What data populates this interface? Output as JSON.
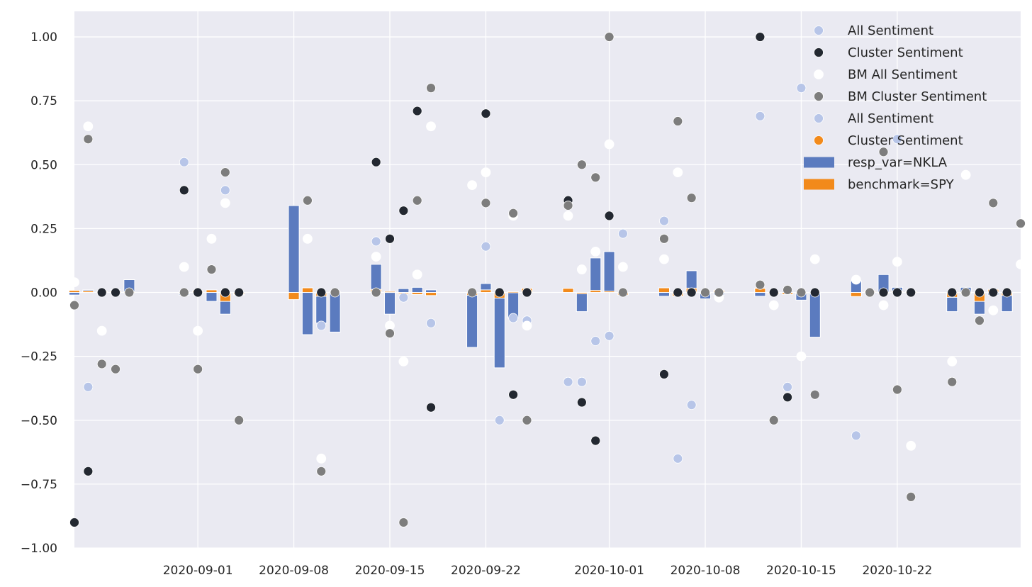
{
  "chart_data": {
    "type": "bar+scatter",
    "title": "",
    "xlabel": "",
    "ylabel": "",
    "ylim": [
      -1.0,
      1.1
    ],
    "xlim": [
      "2020-08-23",
      "2020-10-31"
    ],
    "grid": true,
    "legend_placement": "top-right",
    "yticks": [
      -1.0,
      -0.75,
      -0.5,
      -0.25,
      0.0,
      0.25,
      0.5,
      0.75,
      1.0
    ],
    "yticks_labels": [
      "−1.00",
      "−0.75",
      "−0.50",
      "−0.25",
      "0.00",
      "0.25",
      "0.50",
      "0.75",
      "1.00"
    ],
    "xticks": [
      "2020-09-01",
      "2020-09-08",
      "2020-09-15",
      "2020-09-22",
      "2020-10-01",
      "2020-10-08",
      "2020-10-15",
      "2020-10-22"
    ],
    "colors": {
      "background": "#eaeaf2",
      "grid": "#ffffff",
      "all_sentiment": "#b7c5e8",
      "cluster_sentiment": "#232831",
      "bm_all_sentiment": "#ffffff",
      "bm_cluster_sentiment": "#7d7d7d",
      "cluster_sentiment_2": "#f28a1b",
      "nkla_bar": "#5b7bbf",
      "spy_bar": "#f28a1b"
    },
    "legend": [
      {
        "label": "All Sentiment",
        "kind": "dot",
        "color": "#b7c5e8"
      },
      {
        "label": "Cluster Sentiment",
        "kind": "dot",
        "color": "#232831"
      },
      {
        "label": "BM All Sentiment",
        "kind": "dot",
        "color": "#ffffff"
      },
      {
        "label": "BM Cluster Sentiment",
        "kind": "dot",
        "color": "#7d7d7d"
      },
      {
        "label": "All Sentiment",
        "kind": "dot",
        "color": "#b7c5e8"
      },
      {
        "label": "Cluster Sentiment",
        "kind": "dot",
        "color": "#f28a1b"
      },
      {
        "label": "resp_var=NKLA",
        "kind": "bar",
        "color": "#5b7bbf"
      },
      {
        "label": "benchmark=SPY",
        "kind": "bar",
        "color": "#f28a1b"
      }
    ],
    "series": [
      {
        "name": "resp_var=NKLA",
        "kind": "bar",
        "color": "#5b7bbf",
        "points": [
          [
            "2020-08-23",
            -0.01
          ],
          [
            "2020-08-24",
            0.01
          ],
          [
            "2020-08-25",
            0.005
          ],
          [
            "2020-08-26",
            0.01
          ],
          [
            "2020-08-27",
            0.05
          ],
          [
            "2020-08-31",
            -0.01
          ],
          [
            "2020-09-01",
            0.005
          ],
          [
            "2020-09-02",
            -0.035
          ],
          [
            "2020-09-03",
            -0.085
          ],
          [
            "2020-09-04",
            -0.01
          ],
          [
            "2020-09-08",
            0.34
          ],
          [
            "2020-09-09",
            -0.165
          ],
          [
            "2020-09-10",
            -0.12
          ],
          [
            "2020-09-11",
            -0.155
          ],
          [
            "2020-09-14",
            0.11
          ],
          [
            "2020-09-15",
            -0.085
          ],
          [
            "2020-09-16",
            0.015
          ],
          [
            "2020-09-17",
            0.02
          ],
          [
            "2020-09-18",
            0.01
          ],
          [
            "2020-09-21",
            -0.215
          ],
          [
            "2020-09-22",
            0.035
          ],
          [
            "2020-09-23",
            -0.295
          ],
          [
            "2020-09-24",
            -0.1
          ],
          [
            "2020-09-25",
            0.01
          ],
          [
            "2020-09-28",
            0.01
          ],
          [
            "2020-09-29",
            -0.075
          ],
          [
            "2020-09-30",
            0.135
          ],
          [
            "2020-10-01",
            0.16
          ],
          [
            "2020-10-02",
            -0.005
          ],
          [
            "2020-10-05",
            -0.015
          ],
          [
            "2020-10-06",
            -0.01
          ],
          [
            "2020-10-07",
            0.085
          ],
          [
            "2020-10-08",
            -0.025
          ],
          [
            "2020-10-09",
            -0.01
          ],
          [
            "2020-10-12",
            -0.015
          ],
          [
            "2020-10-13",
            -0.005
          ],
          [
            "2020-10-14",
            0.005
          ],
          [
            "2020-10-15",
            -0.03
          ],
          [
            "2020-10-16",
            -0.175
          ],
          [
            "2020-10-19",
            0.045
          ],
          [
            "2020-10-20",
            0.005
          ],
          [
            "2020-10-21",
            0.07
          ],
          [
            "2020-10-22",
            0.02
          ],
          [
            "2020-10-23",
            0.005
          ],
          [
            "2020-10-26",
            -0.075
          ],
          [
            "2020-10-27",
            0.02
          ],
          [
            "2020-10-28",
            -0.085
          ],
          [
            "2020-10-29",
            -0.01
          ],
          [
            "2020-10-30",
            -0.075
          ]
        ]
      },
      {
        "name": "benchmark=SPY",
        "kind": "bar",
        "color": "#f28a1b",
        "points": [
          [
            "2020-08-23",
            0.008
          ],
          [
            "2020-08-24",
            0.006
          ],
          [
            "2020-08-25",
            0.004
          ],
          [
            "2020-08-26",
            0.006
          ],
          [
            "2020-08-27",
            0.003
          ],
          [
            "2020-08-31",
            -0.003
          ],
          [
            "2020-09-01",
            0.007
          ],
          [
            "2020-09-02",
            0.01
          ],
          [
            "2020-09-03",
            -0.035
          ],
          [
            "2020-09-04",
            -0.008
          ],
          [
            "2020-09-08",
            -0.028
          ],
          [
            "2020-09-09",
            0.018
          ],
          [
            "2020-09-10",
            -0.015
          ],
          [
            "2020-09-11",
            0.004
          ],
          [
            "2020-09-14",
            0.012
          ],
          [
            "2020-09-15",
            0.004
          ],
          [
            "2020-09-16",
            -0.004
          ],
          [
            "2020-09-17",
            -0.008
          ],
          [
            "2020-09-18",
            -0.012
          ],
          [
            "2020-09-21",
            -0.011
          ],
          [
            "2020-09-22",
            0.01
          ],
          [
            "2020-09-23",
            -0.022
          ],
          [
            "2020-09-24",
            0.003
          ],
          [
            "2020-09-25",
            0.016
          ],
          [
            "2020-09-28",
            0.016
          ],
          [
            "2020-09-29",
            -0.005
          ],
          [
            "2020-09-30",
            0.008
          ],
          [
            "2020-10-01",
            0.005
          ],
          [
            "2020-10-02",
            -0.01
          ],
          [
            "2020-10-05",
            0.018
          ],
          [
            "2020-10-06",
            -0.014
          ],
          [
            "2020-10-07",
            0.017
          ],
          [
            "2020-10-08",
            -0.001
          ],
          [
            "2020-10-09",
            0.009
          ],
          [
            "2020-10-12",
            0.016
          ],
          [
            "2020-10-13",
            -0.006
          ],
          [
            "2020-10-14",
            -0.007
          ],
          [
            "2020-10-15",
            -0.002
          ],
          [
            "2020-10-16",
            0.001
          ],
          [
            "2020-10-19",
            -0.016
          ],
          [
            "2020-10-20",
            0.005
          ],
          [
            "2020-10-21",
            -0.002
          ],
          [
            "2020-10-22",
            0.005
          ],
          [
            "2020-10-23",
            0.003
          ],
          [
            "2020-10-26",
            -0.019
          ],
          [
            "2020-10-27",
            -0.003
          ],
          [
            "2020-10-28",
            -0.035
          ],
          [
            "2020-10-29",
            0.012
          ],
          [
            "2020-10-30",
            -0.012
          ]
        ]
      },
      {
        "name": "All Sentiment",
        "kind": "scatter",
        "color": "#b7c5e8",
        "points": [
          [
            "2020-08-24",
            -0.37
          ],
          [
            "2020-08-31",
            0.51
          ],
          [
            "2020-09-03",
            0.4
          ],
          [
            "2020-09-10",
            -0.13
          ],
          [
            "2020-09-14",
            0.2
          ],
          [
            "2020-09-16",
            -0.02
          ],
          [
            "2020-09-17",
            0.07
          ],
          [
            "2020-09-18",
            -0.12
          ],
          [
            "2020-09-22",
            0.18
          ],
          [
            "2020-09-23",
            -0.5
          ],
          [
            "2020-09-24",
            -0.1
          ],
          [
            "2020-09-25",
            -0.11
          ],
          [
            "2020-09-28",
            -0.35
          ],
          [
            "2020-09-29",
            -0.35
          ],
          [
            "2020-09-30",
            -0.19
          ],
          [
            "2020-10-01",
            -0.17
          ],
          [
            "2020-10-02",
            0.23
          ],
          [
            "2020-10-05",
            0.28
          ],
          [
            "2020-10-06",
            -0.65
          ],
          [
            "2020-10-07",
            -0.44
          ],
          [
            "2020-10-12",
            0.69
          ],
          [
            "2020-10-14",
            -0.37
          ],
          [
            "2020-10-15",
            0.8
          ],
          [
            "2020-10-19",
            -0.56
          ],
          [
            "2020-10-22",
            0.6
          ]
        ]
      },
      {
        "name": "Cluster Sentiment",
        "kind": "scatter",
        "color": "#232831",
        "points": [
          [
            "2020-08-23",
            -0.9
          ],
          [
            "2020-08-24",
            -0.7
          ],
          [
            "2020-08-25",
            0.0
          ],
          [
            "2020-08-26",
            0.0
          ],
          [
            "2020-08-31",
            0.4
          ],
          [
            "2020-09-01",
            0.0
          ],
          [
            "2020-09-03",
            0.0
          ],
          [
            "2020-09-04",
            0.0
          ],
          [
            "2020-09-10",
            0.0
          ],
          [
            "2020-09-14",
            0.51
          ],
          [
            "2020-09-15",
            0.21
          ],
          [
            "2020-09-16",
            0.32
          ],
          [
            "2020-09-17",
            0.71
          ],
          [
            "2020-09-18",
            -0.45
          ],
          [
            "2020-09-22",
            0.7
          ],
          [
            "2020-09-23",
            0.0
          ],
          [
            "2020-09-24",
            -0.4
          ],
          [
            "2020-09-25",
            0.0
          ],
          [
            "2020-09-28",
            0.36
          ],
          [
            "2020-09-29",
            -0.43
          ],
          [
            "2020-09-30",
            -0.58
          ],
          [
            "2020-10-01",
            0.3
          ],
          [
            "2020-10-05",
            -0.32
          ],
          [
            "2020-10-06",
            0.0
          ],
          [
            "2020-10-07",
            0.0
          ],
          [
            "2020-10-12",
            1.0
          ],
          [
            "2020-10-13",
            0.0
          ],
          [
            "2020-10-14",
            -0.41
          ],
          [
            "2020-10-16",
            0.0
          ],
          [
            "2020-10-21",
            0.0
          ],
          [
            "2020-10-22",
            0.0
          ],
          [
            "2020-10-23",
            0.0
          ],
          [
            "2020-10-26",
            0.0
          ],
          [
            "2020-10-28",
            0.0
          ],
          [
            "2020-10-29",
            0.0
          ],
          [
            "2020-10-30",
            0.0
          ]
        ]
      },
      {
        "name": "BM All Sentiment",
        "kind": "scatter",
        "color": "#ffffff",
        "points": [
          [
            "2020-08-23",
            0.04
          ],
          [
            "2020-08-24",
            0.65
          ],
          [
            "2020-08-25",
            -0.15
          ],
          [
            "2020-08-31",
            0.1
          ],
          [
            "2020-09-01",
            -0.15
          ],
          [
            "2020-09-02",
            0.21
          ],
          [
            "2020-09-03",
            0.35
          ],
          [
            "2020-09-09",
            0.21
          ],
          [
            "2020-09-10",
            -0.65
          ],
          [
            "2020-09-14",
            0.14
          ],
          [
            "2020-09-15",
            -0.13
          ],
          [
            "2020-09-16",
            -0.27
          ],
          [
            "2020-09-17",
            0.07
          ],
          [
            "2020-09-18",
            0.65
          ],
          [
            "2020-09-21",
            0.42
          ],
          [
            "2020-09-22",
            0.47
          ],
          [
            "2020-09-24",
            0.3
          ],
          [
            "2020-09-25",
            -0.13
          ],
          [
            "2020-09-28",
            0.3
          ],
          [
            "2020-09-29",
            0.09
          ],
          [
            "2020-09-30",
            0.16
          ],
          [
            "2020-10-01",
            0.58
          ],
          [
            "2020-10-02",
            0.1
          ],
          [
            "2020-10-05",
            0.13
          ],
          [
            "2020-10-06",
            0.47
          ],
          [
            "2020-10-09",
            -0.02
          ],
          [
            "2020-10-13",
            -0.05
          ],
          [
            "2020-10-15",
            -0.25
          ],
          [
            "2020-10-16",
            0.13
          ],
          [
            "2020-10-19",
            0.05
          ],
          [
            "2020-10-21",
            -0.05
          ],
          [
            "2020-10-22",
            0.12
          ],
          [
            "2020-10-23",
            -0.6
          ],
          [
            "2020-10-26",
            -0.27
          ],
          [
            "2020-10-27",
            0.46
          ],
          [
            "2020-10-29",
            -0.07
          ],
          [
            "2020-10-31",
            0.11
          ]
        ]
      },
      {
        "name": "BM Cluster Sentiment",
        "kind": "scatter",
        "color": "#7d7d7d",
        "points": [
          [
            "2020-08-23",
            -0.05
          ],
          [
            "2020-08-24",
            0.6
          ],
          [
            "2020-08-25",
            -0.28
          ],
          [
            "2020-08-26",
            -0.3
          ],
          [
            "2020-08-27",
            0.0
          ],
          [
            "2020-08-31",
            0.0
          ],
          [
            "2020-09-01",
            -0.3
          ],
          [
            "2020-09-02",
            0.09
          ],
          [
            "2020-09-03",
            0.47
          ],
          [
            "2020-09-04",
            -0.5
          ],
          [
            "2020-09-09",
            0.36
          ],
          [
            "2020-09-10",
            -0.7
          ],
          [
            "2020-09-11",
            0.0
          ],
          [
            "2020-09-14",
            0.0
          ],
          [
            "2020-09-15",
            -0.16
          ],
          [
            "2020-09-16",
            -0.9
          ],
          [
            "2020-09-17",
            0.36
          ],
          [
            "2020-09-18",
            0.8
          ],
          [
            "2020-09-21",
            0.0
          ],
          [
            "2020-09-22",
            0.35
          ],
          [
            "2020-09-24",
            0.31
          ],
          [
            "2020-09-25",
            -0.5
          ],
          [
            "2020-09-28",
            0.34
          ],
          [
            "2020-09-29",
            0.5
          ],
          [
            "2020-09-30",
            0.45
          ],
          [
            "2020-10-01",
            1.0
          ],
          [
            "2020-10-02",
            0.0
          ],
          [
            "2020-10-05",
            0.21
          ],
          [
            "2020-10-06",
            0.67
          ],
          [
            "2020-10-07",
            0.37
          ],
          [
            "2020-10-08",
            0.0
          ],
          [
            "2020-10-09",
            0.0
          ],
          [
            "2020-10-12",
            0.03
          ],
          [
            "2020-10-13",
            -0.5
          ],
          [
            "2020-10-14",
            0.01
          ],
          [
            "2020-10-15",
            0.0
          ],
          [
            "2020-10-16",
            -0.4
          ],
          [
            "2020-10-20",
            0.0
          ],
          [
            "2020-10-21",
            0.55
          ],
          [
            "2020-10-22",
            -0.38
          ],
          [
            "2020-10-23",
            -0.8
          ],
          [
            "2020-10-26",
            -0.35
          ],
          [
            "2020-10-27",
            0.0
          ],
          [
            "2020-10-28",
            -0.11
          ],
          [
            "2020-10-29",
            0.35
          ],
          [
            "2020-10-31",
            0.27
          ]
        ]
      }
    ]
  }
}
